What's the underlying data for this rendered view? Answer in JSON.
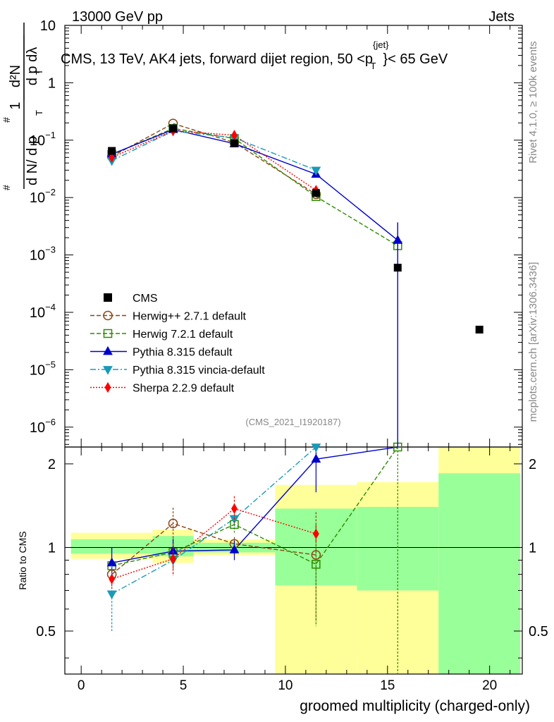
{
  "header": {
    "left": "13000 GeV pp",
    "right": "Jets",
    "title": "CMS, 13 TeV, AK4 jets, forward dijet region, 50 <p",
    "title_sup": "{jet}",
    "title_sub": "T",
    "title_end": "}< 65 GeV"
  },
  "side": {
    "rivet": "Rivet 4.1.0, ≥ 100k events",
    "mcplots": "mcplots.cern.ch [arXiv:1306.3436]"
  },
  "watermark": "(CMS_2021_I1920187)",
  "axes": {
    "xlabel": "groomed multiplicity (charged-only)",
    "ylabel_ratio": "Ratio to CMS",
    "ylabel_main": "1/(dN/dpT) d²N/(dpT dλ)",
    "x_ticks": [
      "0",
      "5",
      "10",
      "15",
      "20"
    ],
    "y_ticks_main": [
      {
        "v": 10,
        "m": "10",
        "e": ""
      },
      {
        "v": 1,
        "m": "1",
        "e": ""
      },
      {
        "v": 0.1,
        "m": "10",
        "e": "−1"
      },
      {
        "v": 0.01,
        "m": "10",
        "e": "−2"
      },
      {
        "v": 0.001,
        "m": "10",
        "e": "−3"
      },
      {
        "v": 0.0001,
        "m": "10",
        "e": "−4"
      },
      {
        "v": 1e-05,
        "m": "10",
        "e": "−5"
      },
      {
        "v": 1e-06,
        "m": "10",
        "e": "−6"
      }
    ],
    "y_ticks_ratio": [
      "0.5",
      "1",
      "2"
    ]
  },
  "chart_data": {
    "type": "line",
    "title": "CMS, 13 TeV, AK4 jets, forward dijet region, 50 < pT < 65 GeV",
    "xlabel": "groomed multiplicity (charged-only)",
    "ylabel": "1/(dN/dpT) d²N/(dpT dλ)",
    "xlim": [
      -0.8,
      21.6
    ],
    "ylim_main": [
      4.5e-07,
      10
    ],
    "ylim_ratio": [
      0.35,
      2.3
    ],
    "legend": [
      "CMS",
      "Herwig++ 2.7.1 default",
      "Herwig 7.2.1 default",
      "Pythia 8.315 default",
      "Pythia 8.315 vincia-default",
      "Sherpa 2.2.9 default"
    ],
    "bins": [
      [
        -0.5,
        3.5
      ],
      [
        3.5,
        5.5
      ],
      [
        5.5,
        9.5
      ],
      [
        9.5,
        13.5
      ],
      [
        13.5,
        17.5
      ],
      [
        17.5,
        21.5
      ]
    ],
    "cms": {
      "name": "CMS",
      "x": [
        1.5,
        4.5,
        7.5,
        11.5,
        15.5,
        19.5
      ],
      "y": [
        0.065,
        0.16,
        0.088,
        0.012,
        0.0006,
        5e-05
      ]
    },
    "bands": {
      "stat_low": [
        0.95,
        0.93,
        0.96,
        0.73,
        0.7,
        0.3
      ],
      "stat_high": [
        1.07,
        1.1,
        1.04,
        1.38,
        1.4,
        1.85
      ],
      "tot_low": [
        0.91,
        0.88,
        0.94,
        0.3,
        0.3,
        0.3
      ],
      "tot_high": [
        1.13,
        1.16,
        1.07,
        1.68,
        1.72,
        2.3
      ]
    },
    "series": [
      {
        "name": "Herwig++ 2.7.1 default",
        "color": "#8b4513",
        "dash": "6,3",
        "marker": "circle",
        "fill": "none",
        "x": [
          1.5,
          4.5,
          7.5,
          11.5
        ],
        "y": [
          0.052,
          0.195,
          0.091,
          0.0114
        ],
        "ratio": [
          0.8,
          1.22,
          1.03,
          0.94
        ],
        "ratio_err": [
          0.06,
          0.17,
          0.06,
          0.4
        ]
      },
      {
        "name": "Herwig 7.2.1 default",
        "color": "#2e8b00",
        "dash": "6,3",
        "marker": "square",
        "fill": "none",
        "x": [
          1.5,
          4.5,
          7.5,
          11.5,
          15.5
        ],
        "y": [
          0.056,
          0.16,
          0.107,
          0.0104,
          0.00145
        ],
        "ratio": [
          0.86,
          0.96,
          1.21,
          0.87,
          2.3
        ],
        "ratio_err": [
          0.05,
          0.12,
          0.08,
          0.35,
          0
        ]
      },
      {
        "name": "Pythia 8.315 default",
        "color": "#0000cc",
        "dash": "",
        "marker": "triangle",
        "fill": "#0000cc",
        "x": [
          1.5,
          4.5,
          7.5,
          11.5,
          15.5
        ],
        "y": [
          0.057,
          0.153,
          0.087,
          0.0255,
          0.0018
        ],
        "ratio": [
          0.88,
          0.97,
          0.98,
          2.08,
          3.0
        ],
        "ratio_err": [
          0.12,
          0.1,
          0.08,
          0.5,
          0
        ]
      },
      {
        "name": "Pythia 8.315 vincia-default",
        "color": "#1a9ab8",
        "dash": "8,3,2,3",
        "marker": "invtriangle",
        "fill": "#1a9ab8",
        "x": [
          1.5,
          4.5,
          7.5,
          11.5
        ],
        "y": [
          0.044,
          0.144,
          0.11,
          0.03
        ],
        "ratio": [
          0.68,
          0.9,
          1.27,
          2.3
        ],
        "ratio_err": [
          0.18,
          0.1,
          0.08,
          0
        ]
      },
      {
        "name": "Sherpa 2.2.9 default",
        "color": "#ff0000",
        "dash": "2,2",
        "marker": "diamond",
        "fill": "#ff0000",
        "x": [
          1.5,
          4.5,
          7.5,
          11.5
        ],
        "y": [
          0.05,
          0.146,
          0.122,
          0.0134
        ],
        "ratio": [
          0.77,
          0.91,
          1.38,
          1.12
        ],
        "ratio_err": [
          0.06,
          0.12,
          0.15,
          0.08
        ]
      }
    ]
  }
}
